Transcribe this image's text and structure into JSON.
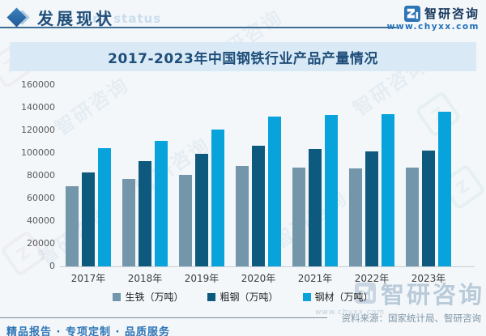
{
  "page": {
    "header": {
      "section_title": "发展现状",
      "ghost_text": "ent status",
      "brand_name": "智研咨询",
      "brand_url": "www.chyxx.com"
    },
    "source": "资料来源：国家统计局、智研咨询",
    "footer": "精品报告 · 专项定制 · 品质服务",
    "watermark": {
      "text": "智研咨询",
      "url": "www.chyxx.com"
    },
    "icons": {
      "diamond": "diamond-bullet-icon",
      "logo": "brand-logo-icon"
    },
    "colors": {
      "accent_navy": "#1f4e79",
      "brand_blue": "#2e75b6",
      "title_band_bg": "#d9eaf6",
      "series_pig_iron": "#7396ab",
      "series_crude_steel": "#0d5a7e",
      "series_steel_products": "#09a3dc"
    }
  },
  "chart_data": {
    "type": "bar",
    "title": "2017-2023年中国钢铁行业产品产量情况",
    "categories": [
      "2017年",
      "2018年",
      "2019年",
      "2020年",
      "2021年",
      "2022年",
      "2023年"
    ],
    "series": [
      {
        "name": "生铁（万吨）",
        "color": "#7396ab",
        "values": [
          71076,
          77105,
          80937,
          88752,
          86857,
          86383,
          87101
        ]
      },
      {
        "name": "粗钢（万吨）",
        "color": "#0d5a7e",
        "values": [
          83173,
          92826,
          99634,
          106477,
          103524,
          101796,
          101908
        ]
      },
      {
        "name": "钢材（万吨）",
        "color": "#09a3dc",
        "values": [
          104642,
          110552,
          120477,
          132489,
          133667,
          134034,
          136268
        ]
      }
    ],
    "xlabel": "",
    "ylabel": "",
    "ylim": [
      0,
      160000
    ],
    "yticks": [
      0,
      20000,
      40000,
      60000,
      80000,
      100000,
      120000,
      140000,
      160000
    ],
    "grid": false,
    "legend_position": "bottom"
  }
}
